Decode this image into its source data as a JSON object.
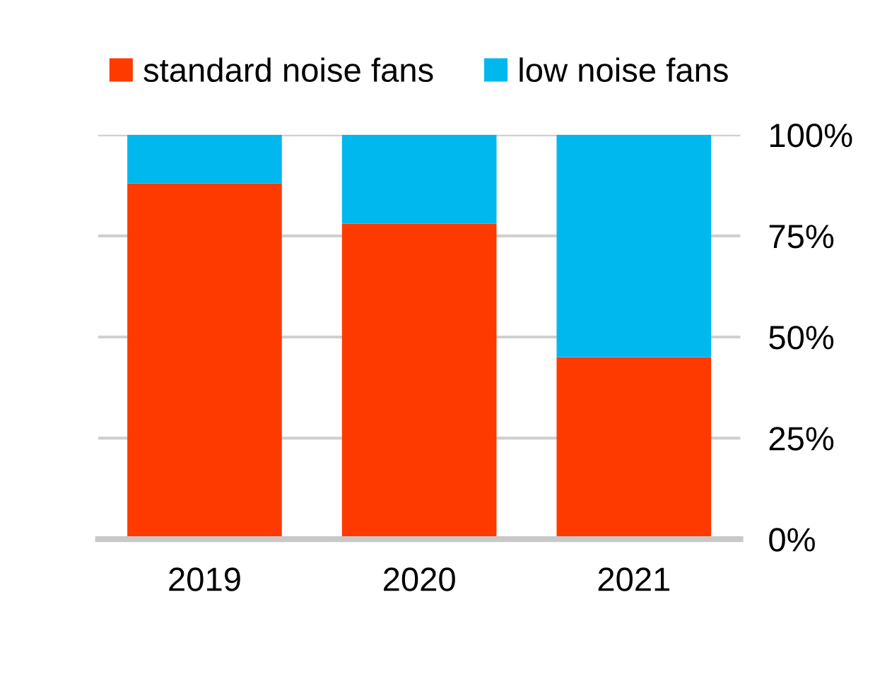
{
  "chart_data": {
    "type": "bar",
    "stacked": true,
    "categories": [
      "2019",
      "2020",
      "2021"
    ],
    "series": [
      {
        "name": "standard noise fans",
        "color": "#ff3a00",
        "values": [
          88,
          78,
          45
        ]
      },
      {
        "name": "low noise fans",
        "color": "#00b8ee",
        "values": [
          12,
          22,
          55
        ]
      }
    ],
    "ylim": [
      0,
      100
    ],
    "yticks": [
      {
        "value": 0,
        "label": "0%"
      },
      {
        "value": 25,
        "label": "25%"
      },
      {
        "value": 50,
        "label": "50%"
      },
      {
        "value": 75,
        "label": "75%"
      },
      {
        "value": 100,
        "label": "100%"
      }
    ],
    "grid": "y",
    "legend": "top"
  }
}
